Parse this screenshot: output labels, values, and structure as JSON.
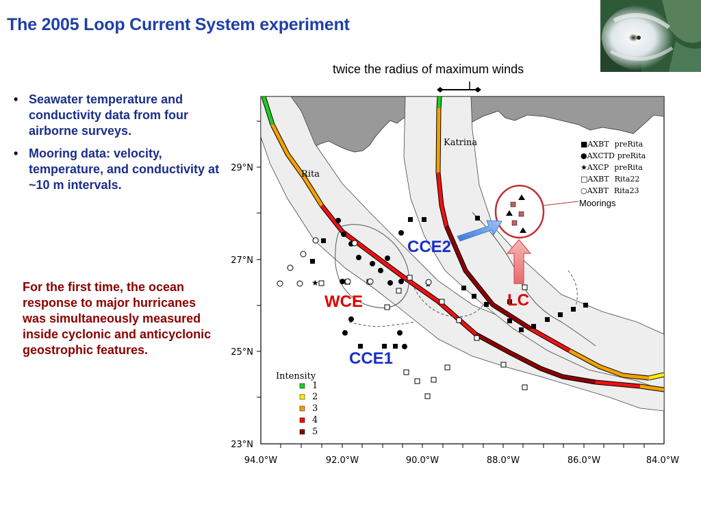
{
  "title": "The 2005 Loop Current System experiment",
  "bullets": [
    "Seawater temperature and conductivity data from four airborne surveys.",
    "Mooring data: velocity, temperature, and conductivity at ~10 m intervals."
  ],
  "highlight_text": "For the first time, the ocean response to major hurricanes was simultaneously measured inside cyclonic and anticyclonic geostrophic features.",
  "radius_label": "twice the radius of maximum winds",
  "map": {
    "storm_labels": {
      "katrina": "Katrina",
      "rita": "Rita"
    },
    "features": {
      "cce2": "CCE2",
      "wce": "WCE",
      "lc": "LC",
      "cce1": "CCE1"
    },
    "moorings_label": "Moorings",
    "lat_labels": [
      "29°N",
      "27°N",
      "25°N",
      "23°N"
    ],
    "lon_labels": [
      "94.0°W",
      "92.0°W",
      "90.0°W",
      "88.0°W",
      "86.0°W",
      "84.0°W"
    ],
    "legend": [
      {
        "symbol": "■",
        "name": "AXBT",
        "period": "preRita"
      },
      {
        "symbol": "●",
        "name": "AXCTD",
        "period": "preRita"
      },
      {
        "symbol": "★",
        "name": "AXCP",
        "period": "preRita"
      },
      {
        "symbol": "□",
        "name": "AXBT",
        "period": "Rita22"
      },
      {
        "symbol": "○",
        "name": "AXBT",
        "period": "Rita23"
      }
    ],
    "intensity_title": "Intensity",
    "intensity": [
      {
        "level": "1",
        "color": "#22cc22"
      },
      {
        "level": "2",
        "color": "#ffee00"
      },
      {
        "level": "3",
        "color": "#f5a000"
      },
      {
        "level": "4",
        "color": "#ee1111"
      },
      {
        "level": "5",
        "color": "#8b0000"
      }
    ]
  },
  "colors": {
    "title": "#1f3fa8",
    "bullets": "#1a2f8a",
    "highlight": "#8b0000",
    "feature_blue": "#1a2fc8",
    "feature_red": "#dd0000"
  }
}
